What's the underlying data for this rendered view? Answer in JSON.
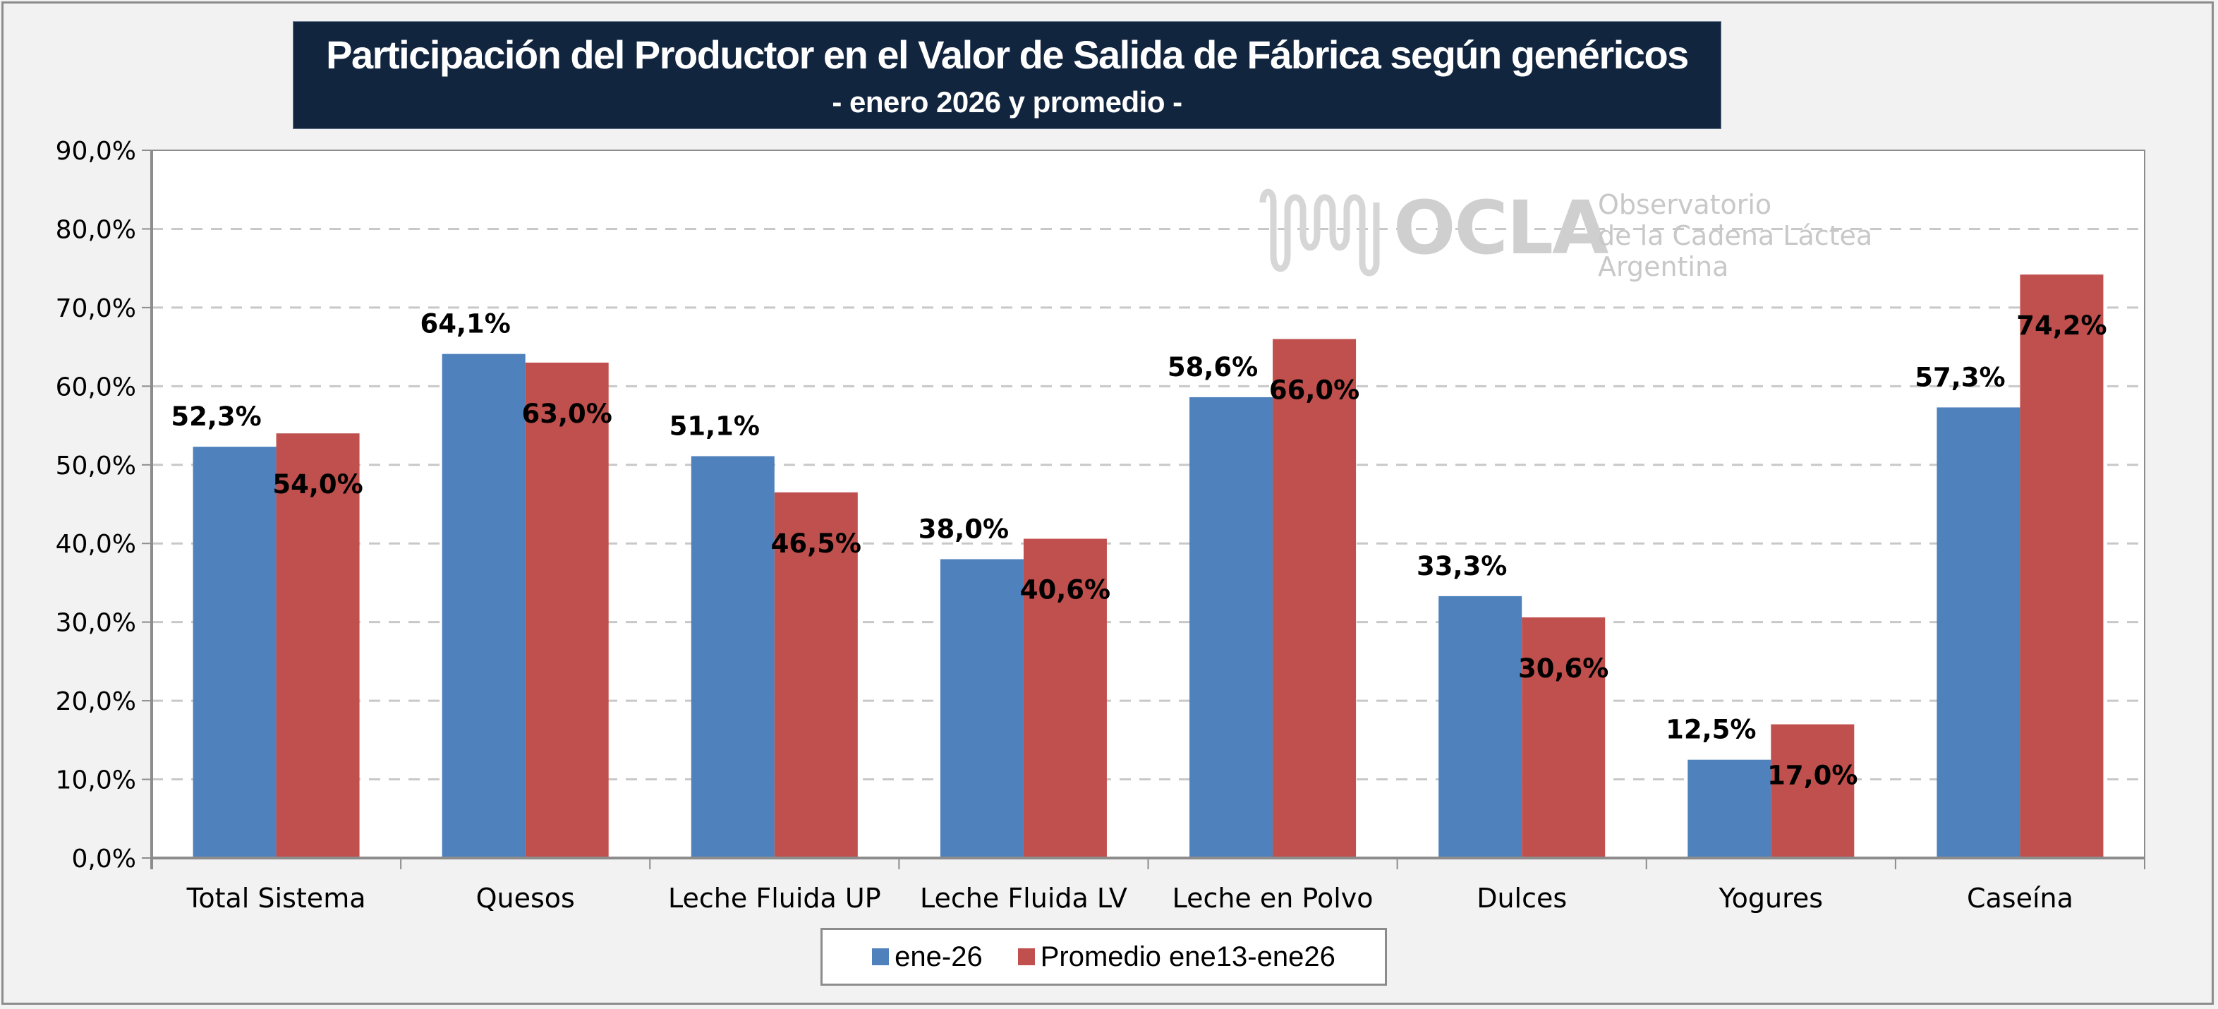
{
  "title": {
    "main": "Participación del Productor en el Valor de Salida de Fábrica según genéricos",
    "sub": "- enero 2026 y promedio  -"
  },
  "watermark": {
    "icon": "milk-wave-logo-icon",
    "brand": "OCLA",
    "line1": "Observatorio",
    "line2": "de la Cadena Láctea",
    "line3": "Argentina"
  },
  "colors": {
    "series1": "#4f81bd",
    "series2": "#c0504d",
    "title_bg": "#12253f",
    "grid": "#c8c8c8",
    "axis": "#8c8c8c"
  },
  "chart_data": {
    "type": "bar",
    "title": "Participación del Productor en el Valor de Salida de Fábrica según genéricos",
    "subtitle": "- enero 2026 y promedio  -",
    "xlabel": "",
    "ylabel": "",
    "ylim": [
      0,
      90
    ],
    "ytick_step": 10,
    "yticks": [
      "0,0%",
      "10,0%",
      "20,0%",
      "30,0%",
      "40,0%",
      "50,0%",
      "60,0%",
      "70,0%",
      "80,0%",
      "90,0%"
    ],
    "grid": true,
    "legend_position": "bottom",
    "categories": [
      "Total Sistema",
      "Quesos",
      "Leche Fluida UP",
      "Leche Fluida LV",
      "Leche en Polvo",
      "Dulces",
      "Yogures",
      "Caseína"
    ],
    "series": [
      {
        "name": "ene-26",
        "values": [
          52.3,
          64.1,
          51.1,
          38.0,
          58.6,
          33.3,
          12.5,
          57.3
        ],
        "labels": [
          "52,3%",
          "64,1%",
          "51,1%",
          "38,0%",
          "58,6%",
          "33,3%",
          "12,5%",
          "57,3%"
        ]
      },
      {
        "name": "Promedio ene13-ene26",
        "values": [
          54.0,
          63.0,
          46.5,
          40.6,
          66.0,
          30.6,
          17.0,
          74.2
        ],
        "labels": [
          "54,0%",
          "63,0%",
          "46,5%",
          "40,6%",
          "66,0%",
          "30,6%",
          "17,0%",
          "74,2%"
        ]
      }
    ]
  },
  "legend": {
    "items": [
      {
        "label": "ene-26"
      },
      {
        "label": "Promedio ene13-ene26"
      }
    ]
  }
}
